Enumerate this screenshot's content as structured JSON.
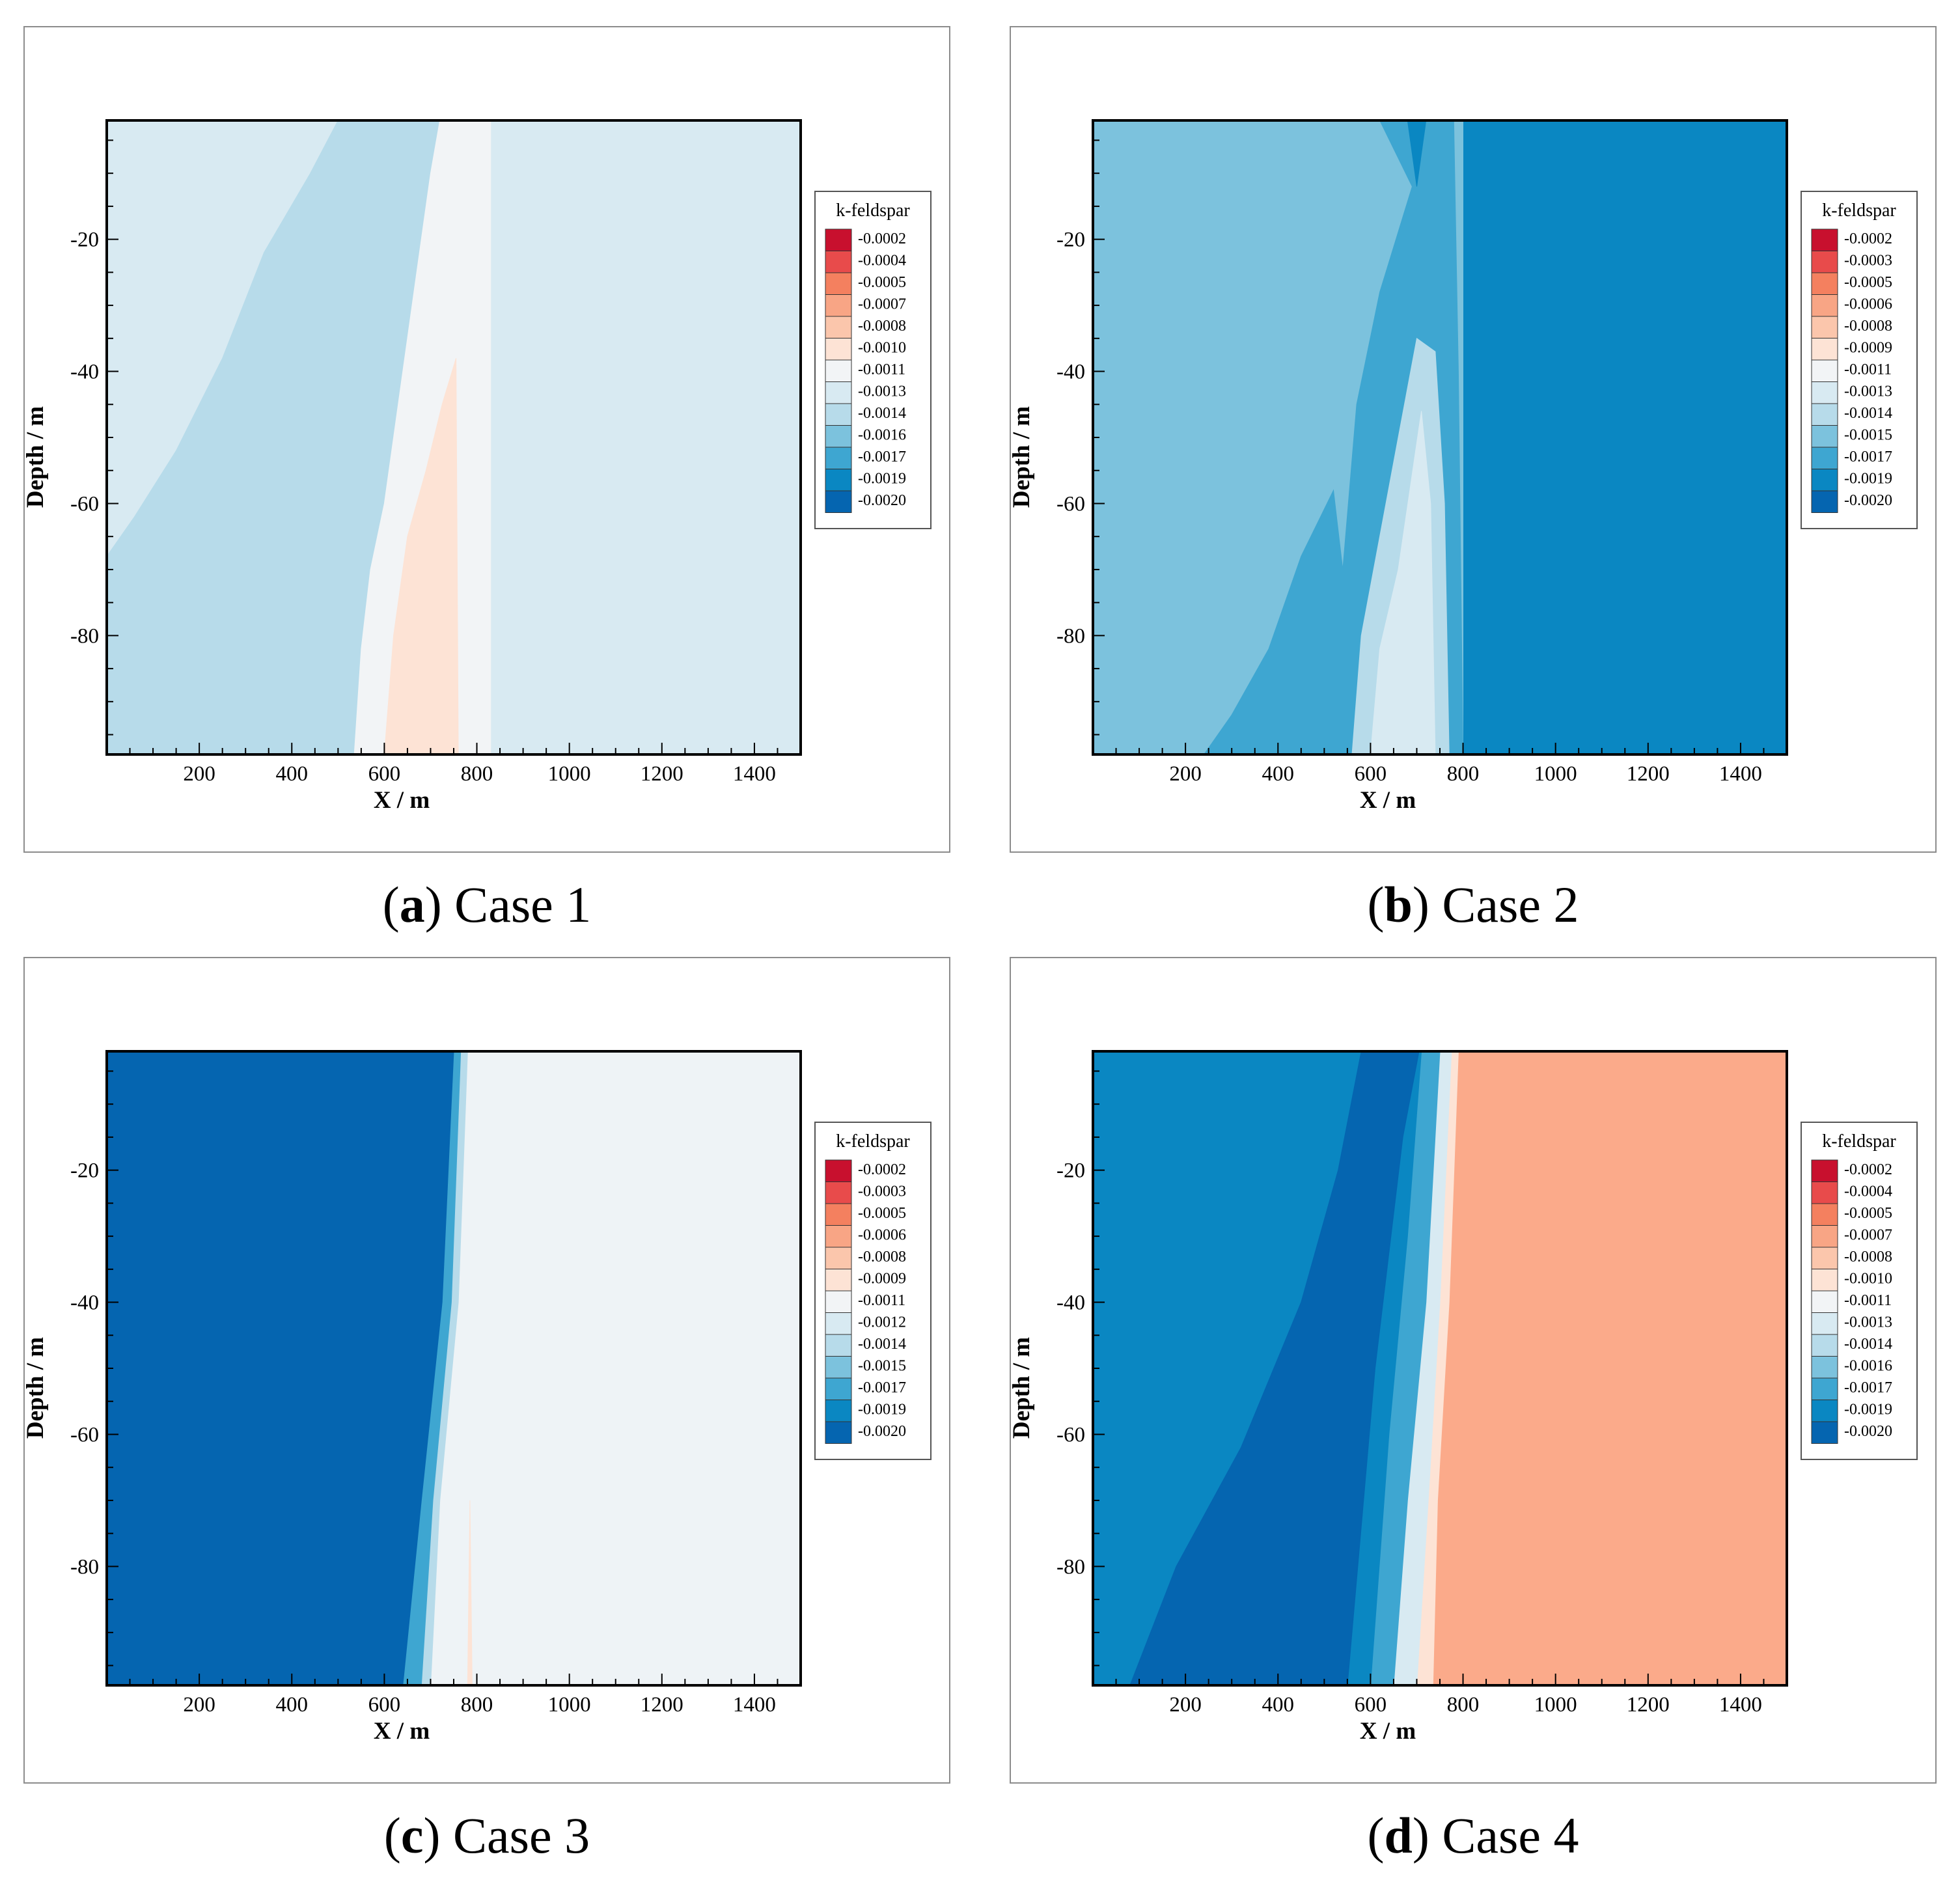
{
  "figure": {
    "chart_data": [
      {
        "type": "heatmap",
        "panel_letter": "a",
        "panel_title": "Case 1",
        "xlabel": "X / m",
        "ylabel": "Depth / m",
        "xlim": [
          0,
          1500
        ],
        "ylim": [
          -98,
          -2
        ],
        "x_ticks": [
          "200",
          "400",
          "600",
          "800",
          "1000",
          "1200",
          "1400"
        ],
        "y_ticks": [
          "-20",
          "-40",
          "-60",
          "-80"
        ],
        "legend": {
          "title": "k-feldspar",
          "labels": [
            "-0.0002",
            "-0.0004",
            "-0.0005",
            "-0.0007",
            "-0.0008",
            "-0.0010",
            "-0.0011",
            "-0.0013",
            "-0.0014",
            "-0.0016",
            "-0.0017",
            "-0.0019",
            "-0.0020"
          ],
          "colors": [
            "#c8102e",
            "#e84b4b",
            "#f4805f",
            "#f8a585",
            "#fbc6ac",
            "#fde3d5",
            "#f2f4f6",
            "#d8eaf2",
            "#b7dbea",
            "#7cc2dd",
            "#3ea6d1",
            "#0a87c2",
            "#0565b0"
          ]
        },
        "regions": [
          {
            "color": "#d8eaf2",
            "points": [
              [
                0,
                -2
              ],
              [
                1500,
                -2
              ],
              [
                1500,
                -98
              ],
              [
                0,
                -98
              ]
            ]
          },
          {
            "color": "#b7dbea",
            "points": [
              [
                0,
                -68
              ],
              [
                60,
                -62
              ],
              [
                150,
                -52
              ],
              [
                250,
                -38
              ],
              [
                340,
                -22
              ],
              [
                440,
                -10
              ],
              [
                500,
                -2
              ],
              [
                830,
                -2
              ],
              [
                830,
                -98
              ],
              [
                0,
                -98
              ]
            ]
          },
          {
            "color": "#f2f4f6",
            "points": [
              [
                740,
                -2
              ],
              [
                830,
                -2
              ],
              [
                830,
                -98
              ],
              [
                535,
                -98
              ],
              [
                550,
                -82
              ],
              [
                570,
                -70
              ],
              [
                600,
                -60
              ],
              [
                640,
                -40
              ],
              [
                670,
                -25
              ],
              [
                700,
                -10
              ],
              [
                720,
                -2
              ]
            ]
          },
          {
            "color": "#fde3d5",
            "points": [
              [
                755,
                -38
              ],
              [
                760,
                -98
              ],
              [
                600,
                -98
              ],
              [
                620,
                -80
              ],
              [
                650,
                -65
              ],
              [
                690,
                -55
              ],
              [
                725,
                -45
              ]
            ]
          }
        ]
      },
      {
        "type": "heatmap",
        "panel_letter": "b",
        "panel_title": "Case 2",
        "xlabel": "X / m",
        "ylabel": "Depth / m",
        "xlim": [
          0,
          1500
        ],
        "ylim": [
          -98,
          -2
        ],
        "x_ticks": [
          "200",
          "400",
          "600",
          "800",
          "1000",
          "1200",
          "1400"
        ],
        "y_ticks": [
          "-20",
          "-40",
          "-60",
          "-80"
        ],
        "legend": {
          "title": "k-feldspar",
          "labels": [
            "-0.0002",
            "-0.0003",
            "-0.0005",
            "-0.0006",
            "-0.0008",
            "-0.0009",
            "-0.0011",
            "-0.0013",
            "-0.0014",
            "-0.0015",
            "-0.0017",
            "-0.0019",
            "-0.0020"
          ],
          "colors": [
            "#c8102e",
            "#e84b4b",
            "#f4805f",
            "#f8a585",
            "#fbc6ac",
            "#fde3d5",
            "#f2f4f6",
            "#d8eaf2",
            "#b7dbea",
            "#7cc2dd",
            "#3ea6d1",
            "#0a87c2",
            "#0565b0"
          ]
        },
        "regions": [
          {
            "color": "#0a87c2",
            "points": [
              [
                0,
                -2
              ],
              [
                1500,
                -2
              ],
              [
                1500,
                -98
              ],
              [
                0,
                -98
              ]
            ]
          },
          {
            "color": "#7cc2dd",
            "points": [
              [
                0,
                -2
              ],
              [
                800,
                -2
              ],
              [
                800,
                -98
              ],
              [
                0,
                -98
              ]
            ]
          },
          {
            "color": "#3ea6d1",
            "points": [
              [
                620,
                -2
              ],
              [
                780,
                -2
              ],
              [
                790,
                -40
              ],
              [
                800,
                -98
              ],
              [
                240,
                -98
              ],
              [
                300,
                -92
              ],
              [
                380,
                -82
              ],
              [
                450,
                -68
              ],
              [
                520,
                -58
              ],
              [
                540,
                -70
              ],
              [
                570,
                -45
              ],
              [
                620,
                -28
              ],
              [
                690,
                -12
              ]
            ]
          },
          {
            "color": "#b7dbea",
            "points": [
              [
                700,
                -35
              ],
              [
                740,
                -37
              ],
              [
                760,
                -60
              ],
              [
                770,
                -98
              ],
              [
                560,
                -98
              ],
              [
                580,
                -80
              ],
              [
                620,
                -65
              ],
              [
                660,
                -50
              ]
            ]
          },
          {
            "color": "#d8eaf2",
            "points": [
              [
                710,
                -46
              ],
              [
                730,
                -60
              ],
              [
                740,
                -98
              ],
              [
                600,
                -98
              ],
              [
                620,
                -82
              ],
              [
                660,
                -70
              ]
            ]
          },
          {
            "color": "#0a87c2",
            "points": [
              [
                680,
                -2
              ],
              [
                720,
                -2
              ],
              [
                700,
                -12
              ]
            ]
          },
          {
            "color": "#7cc2dd",
            "points": [
              [
                0,
                -92
              ],
              [
                25,
                -98
              ],
              [
                0,
                -98
              ]
            ]
          }
        ]
      },
      {
        "type": "heatmap",
        "panel_letter": "c",
        "panel_title": "Case 3",
        "xlabel": "X / m",
        "ylabel": "Depth / m",
        "xlim": [
          0,
          1500
        ],
        "ylim": [
          -98,
          -2
        ],
        "x_ticks": [
          "200",
          "400",
          "600",
          "800",
          "1000",
          "1200",
          "1400"
        ],
        "y_ticks": [
          "-20",
          "-40",
          "-60",
          "-80"
        ],
        "legend": {
          "title": "k-feldspar",
          "labels": [
            "-0.0002",
            "-0.0003",
            "-0.0005",
            "-0.0006",
            "-0.0008",
            "-0.0009",
            "-0.0011",
            "-0.0012",
            "-0.0014",
            "-0.0015",
            "-0.0017",
            "-0.0019",
            "-0.0020"
          ],
          "colors": [
            "#c8102e",
            "#e84b4b",
            "#f4805f",
            "#f8a585",
            "#fbc6ac",
            "#fde3d5",
            "#f2f4f6",
            "#d8eaf2",
            "#b7dbea",
            "#7cc2dd",
            "#3ea6d1",
            "#0a87c2",
            "#0565b0"
          ]
        },
        "regions": [
          {
            "color": "#eef3f6",
            "points": [
              [
                0,
                -2
              ],
              [
                1500,
                -2
              ],
              [
                1500,
                -98
              ],
              [
                0,
                -98
              ]
            ]
          },
          {
            "color": "#b7dbea",
            "points": [
              [
                0,
                -2
              ],
              [
                780,
                -2
              ],
              [
                760,
                -40
              ],
              [
                720,
                -70
              ],
              [
                700,
                -98
              ],
              [
                0,
                -98
              ]
            ]
          },
          {
            "color": "#3ea6d1",
            "points": [
              [
                0,
                -2
              ],
              [
                765,
                -2
              ],
              [
                745,
                -40
              ],
              [
                705,
                -70
              ],
              [
                680,
                -98
              ],
              [
                0,
                -98
              ]
            ]
          },
          {
            "color": "#0565b0",
            "points": [
              [
                0,
                -2
              ],
              [
                750,
                -2
              ],
              [
                725,
                -40
              ],
              [
                680,
                -70
              ],
              [
                640,
                -98
              ],
              [
                0,
                -98
              ]
            ]
          },
          {
            "color": "#fde3d5",
            "points": [
              [
                785,
                -70
              ],
              [
                790,
                -98
              ],
              [
                780,
                -98
              ]
            ]
          }
        ]
      },
      {
        "type": "heatmap",
        "panel_letter": "d",
        "panel_title": "Case 4",
        "xlabel": "X / m",
        "ylabel": "Depth / m",
        "xlim": [
          0,
          1500
        ],
        "ylim": [
          -98,
          -2
        ],
        "x_ticks": [
          "200",
          "400",
          "600",
          "800",
          "1000",
          "1200",
          "1400"
        ],
        "y_ticks": [
          "-20",
          "-40",
          "-60",
          "-80"
        ],
        "legend": {
          "title": "k-feldspar",
          "labels": [
            "-0.0002",
            "-0.0004",
            "-0.0005",
            "-0.0007",
            "-0.0008",
            "-0.0010",
            "-0.0011",
            "-0.0013",
            "-0.0014",
            "-0.0016",
            "-0.0017",
            "-0.0019",
            "-0.0020"
          ],
          "colors": [
            "#c8102e",
            "#e84b4b",
            "#f4805f",
            "#f8a585",
            "#fbc6ac",
            "#fde3d5",
            "#f2f4f6",
            "#d8eaf2",
            "#b7dbea",
            "#7cc2dd",
            "#3ea6d1",
            "#0a87c2",
            "#0565b0"
          ]
        },
        "regions": [
          {
            "color": "#fbaa8a",
            "points": [
              [
                0,
                -2
              ],
              [
                1500,
                -2
              ],
              [
                1500,
                -98
              ],
              [
                0,
                -98
              ]
            ]
          },
          {
            "color": "#fde3d5",
            "points": [
              [
                0,
                -2
              ],
              [
                790,
                -2
              ],
              [
                770,
                -40
              ],
              [
                745,
                -70
              ],
              [
                735,
                -98
              ],
              [
                0,
                -98
              ]
            ]
          },
          {
            "color": "#d8eaf2",
            "points": [
              [
                0,
                -2
              ],
              [
                775,
                -2
              ],
              [
                750,
                -40
              ],
              [
                725,
                -70
              ],
              [
                700,
                -98
              ],
              [
                0,
                -98
              ]
            ]
          },
          {
            "color": "#3ea6d1",
            "points": [
              [
                0,
                -2
              ],
              [
                750,
                -2
              ],
              [
                720,
                -40
              ],
              [
                680,
                -70
              ],
              [
                650,
                -98
              ],
              [
                0,
                -98
              ]
            ]
          },
          {
            "color": "#0a87c2",
            "points": [
              [
                0,
                -2
              ],
              [
                710,
                -2
              ],
              [
                680,
                -30
              ],
              [
                640,
                -60
              ],
              [
                600,
                -98
              ],
              [
                0,
                -98
              ]
            ]
          },
          {
            "color": "#0565b0",
            "points": [
              [
                580,
                -2
              ],
              [
                705,
                -2
              ],
              [
                670,
                -15
              ],
              [
                610,
                -50
              ],
              [
                550,
                -98
              ],
              [
                80,
                -98
              ],
              [
                180,
                -80
              ],
              [
                320,
                -62
              ],
              [
                450,
                -40
              ],
              [
                530,
                -20
              ]
            ]
          }
        ]
      }
    ]
  }
}
